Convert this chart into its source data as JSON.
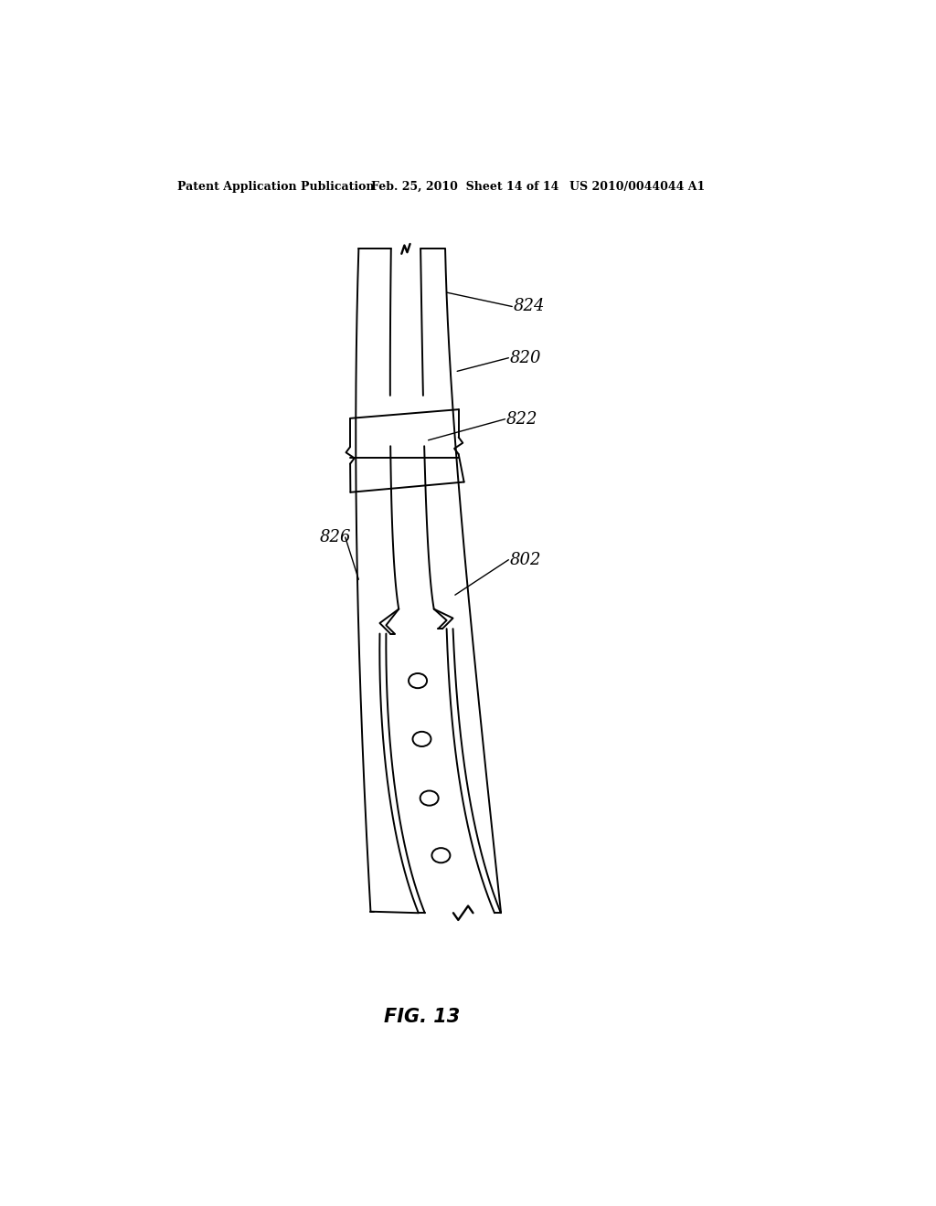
{
  "bg_color": "#ffffff",
  "line_color": "#000000",
  "header_left": "Patent Application Publication",
  "header_mid": "Feb. 25, 2010  Sheet 14 of 14",
  "header_right": "US 2010/0044044 A1",
  "figure_label": "FIG. 13",
  "label_font_size": 13,
  "lw": 1.4
}
